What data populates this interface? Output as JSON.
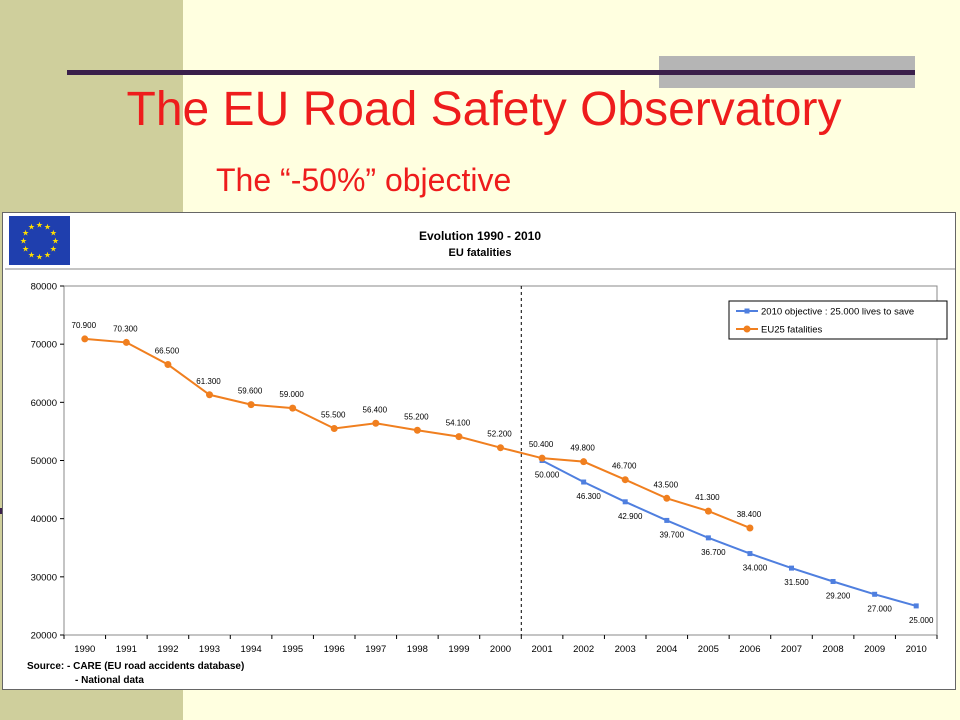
{
  "slide": {
    "title": "The EU Road Safety Observatory",
    "subtitle": "The “-50%” objective",
    "colors": {
      "background": "#ffffe0",
      "side_band": "#cfcf9c",
      "title": "#ee1c1c",
      "accent_line": "#3a1f4a"
    }
  },
  "chart_data": {
    "type": "line",
    "title": "Evolution 1990 - 2010",
    "subtitle": "EU fatalities",
    "logo": "EU flag",
    "x": [
      "1990",
      "1991",
      "1992",
      "1993",
      "1994",
      "1995",
      "1996",
      "1997",
      "1998",
      "1999",
      "2000",
      "2001",
      "2002",
      "2003",
      "2004",
      "2005",
      "2006",
      "2007",
      "2008",
      "2009",
      "2010"
    ],
    "ylim": [
      20000,
      80000
    ],
    "yticks": [
      "20000",
      "30000",
      "40000",
      "50000",
      "60000",
      "70000",
      "80000"
    ],
    "legend_position": "top-right",
    "grid": false,
    "divider_after": "2000",
    "series": [
      {
        "name": "2010 objective : 25.000 lives to save",
        "color": "#4f7fdf",
        "x": [
          "2001",
          "2002",
          "2003",
          "2004",
          "2005",
          "2006",
          "2007",
          "2008",
          "2009",
          "2010"
        ],
        "values": [
          50000,
          46300,
          42900,
          39700,
          36700,
          34000,
          31500,
          29200,
          27000,
          25000
        ],
        "labels": [
          "50.000",
          "46.300",
          "42.900",
          "39.700",
          "36.700",
          "34.000",
          "31.500",
          "29.200",
          "27.000",
          "25.000"
        ]
      },
      {
        "name": "EU25  fatalities",
        "color": "#f07f1f",
        "x": [
          "1990",
          "1991",
          "1992",
          "1993",
          "1994",
          "1995",
          "1996",
          "1997",
          "1998",
          "1999",
          "2000",
          "2001",
          "2002",
          "2003",
          "2004",
          "2005",
          "2006"
        ],
        "values": [
          70900,
          70300,
          66500,
          61300,
          59600,
          59000,
          55500,
          56400,
          55200,
          54100,
          52200,
          50400,
          49800,
          46700,
          43500,
          41300,
          38400
        ],
        "labels": [
          "70.900",
          "70.300",
          "66.500",
          "61.300",
          "59.600",
          "59.000",
          "55.500",
          "56.400",
          "55.200",
          "54.100",
          "52.200",
          "50.400",
          "49.800",
          "46.700",
          "43.500",
          "41.300",
          "38.400"
        ]
      }
    ],
    "source_lines": [
      "Source: - CARE (EU road accidents database)",
      "- National data"
    ]
  }
}
